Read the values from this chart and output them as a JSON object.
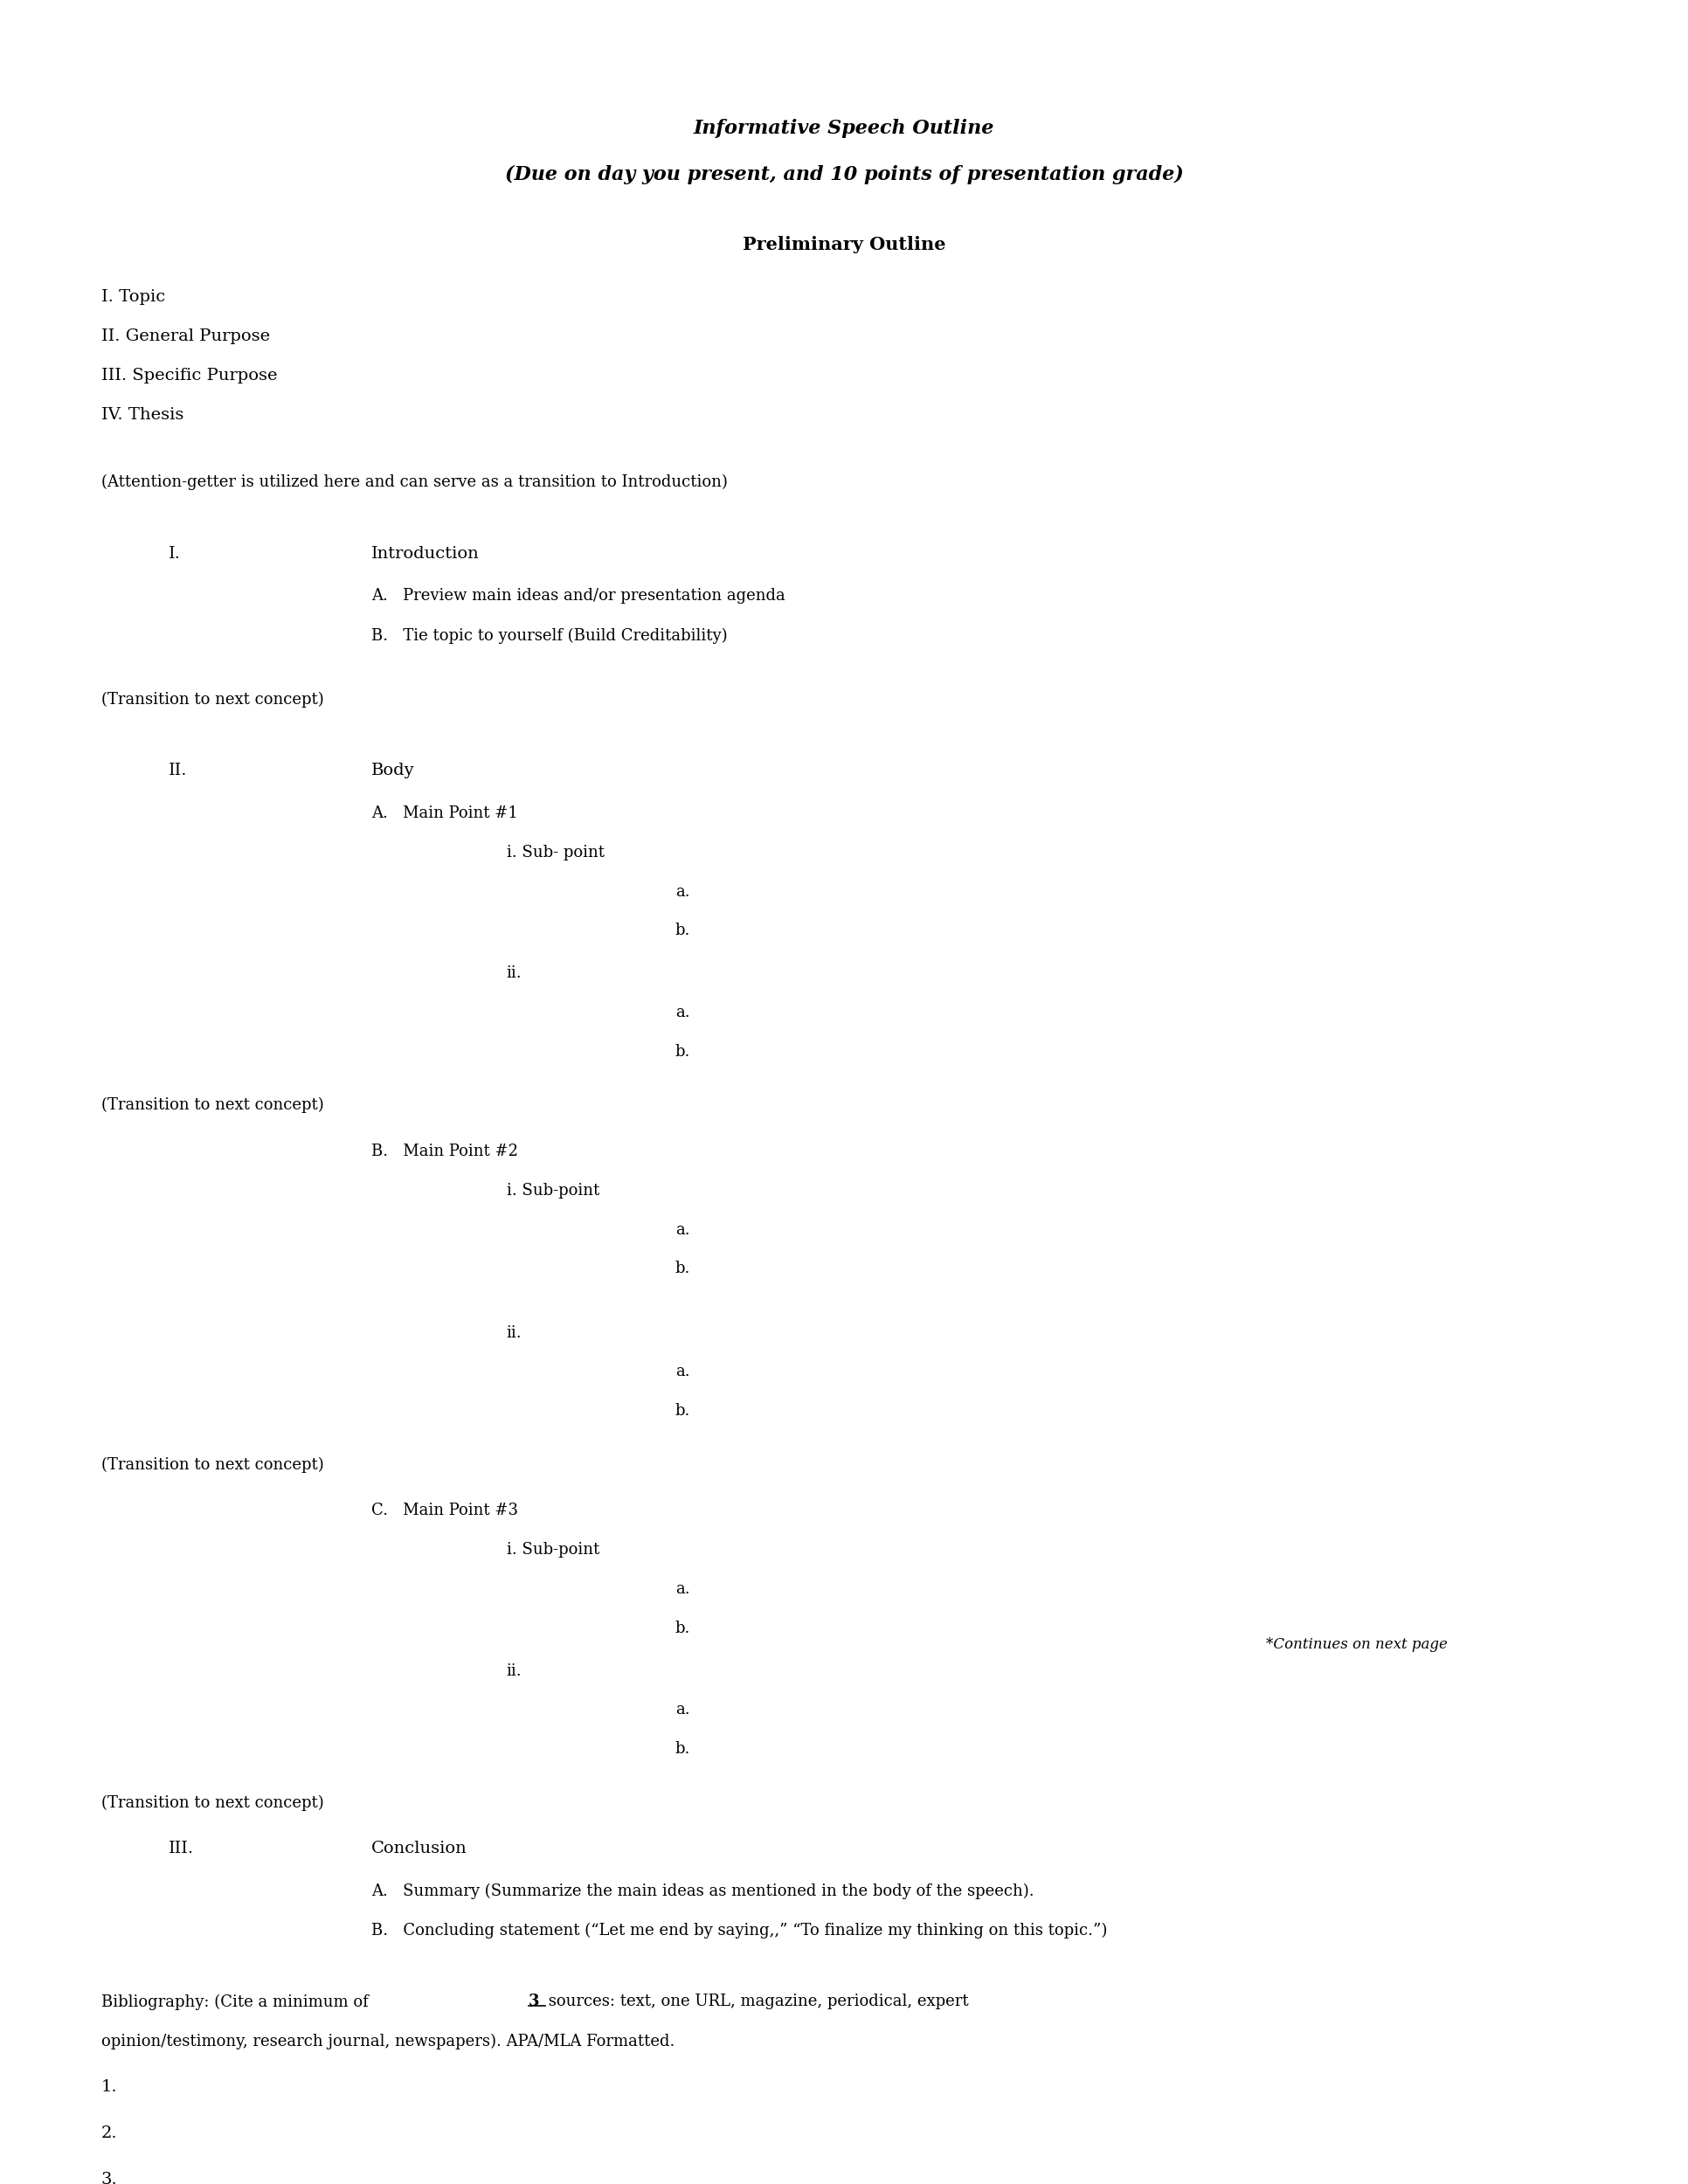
{
  "title_line1": "Informative Speech Outline",
  "title_line2": "(Due on day you present, and 10 points of presentation grade)",
  "section_header": "Preliminary Outline",
  "prelim_items": [
    "I. Topic",
    "II. General Purpose",
    "III. Specific Purpose",
    "IV. Thesis"
  ],
  "attention_getter": "(Attention-getter is utilized here and can serve as a transition to Introduction)",
  "transition1": "(Transition to next concept)",
  "transition2": "(Transition to next concept)",
  "transition3": "(Transition to next concept)",
  "transition4": "(Transition to next concept)",
  "bib_numbers": [
    "1.",
    "2.",
    "3."
  ],
  "footnote": "*Continues on next page",
  "bg_color": "#ffffff",
  "text_color": "#000000",
  "font_size": 14,
  "font_family": "DejaVu Serif"
}
